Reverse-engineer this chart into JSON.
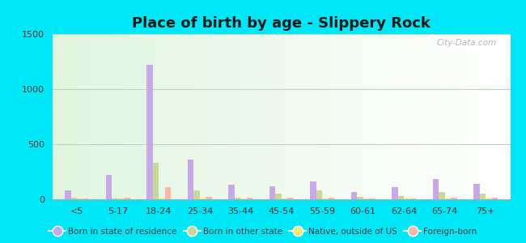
{
  "title": "Place of birth by age - Slippery Rock",
  "categories": [
    "<5",
    "5-17",
    "18-24",
    "25-34",
    "35-44",
    "45-54",
    "55-59",
    "60-61",
    "62-64",
    "65-74",
    "75+"
  ],
  "series": [
    {
      "label": "Born in state of residence",
      "color": "#c8a8e8",
      "values": [
        80,
        220,
        1220,
        360,
        130,
        120,
        160,
        65,
        110,
        185,
        140
      ]
    },
    {
      "label": "Born in other state",
      "color": "#c8d898",
      "values": [
        15,
        10,
        330,
        80,
        15,
        55,
        80,
        20,
        30,
        65,
        50
      ]
    },
    {
      "label": "Native, outside of US",
      "color": "#f0e870",
      "values": [
        5,
        5,
        5,
        10,
        5,
        5,
        5,
        5,
        5,
        5,
        5
      ]
    },
    {
      "label": "Foreign-born",
      "color": "#f8b8a8",
      "values": [
        10,
        15,
        110,
        20,
        15,
        15,
        15,
        10,
        10,
        15,
        15
      ]
    }
  ],
  "ylim": [
    0,
    1500
  ],
  "yticks": [
    0,
    500,
    1000,
    1500
  ],
  "outer_bg": "#00e8f8",
  "plot_bg_top": "#c8eec8",
  "plot_bg_bottom": "#f0fff0",
  "title_fontsize": 13,
  "bar_width": 0.15,
  "grid_color": "#b8d8b8",
  "watermark": "City-Data.com"
}
